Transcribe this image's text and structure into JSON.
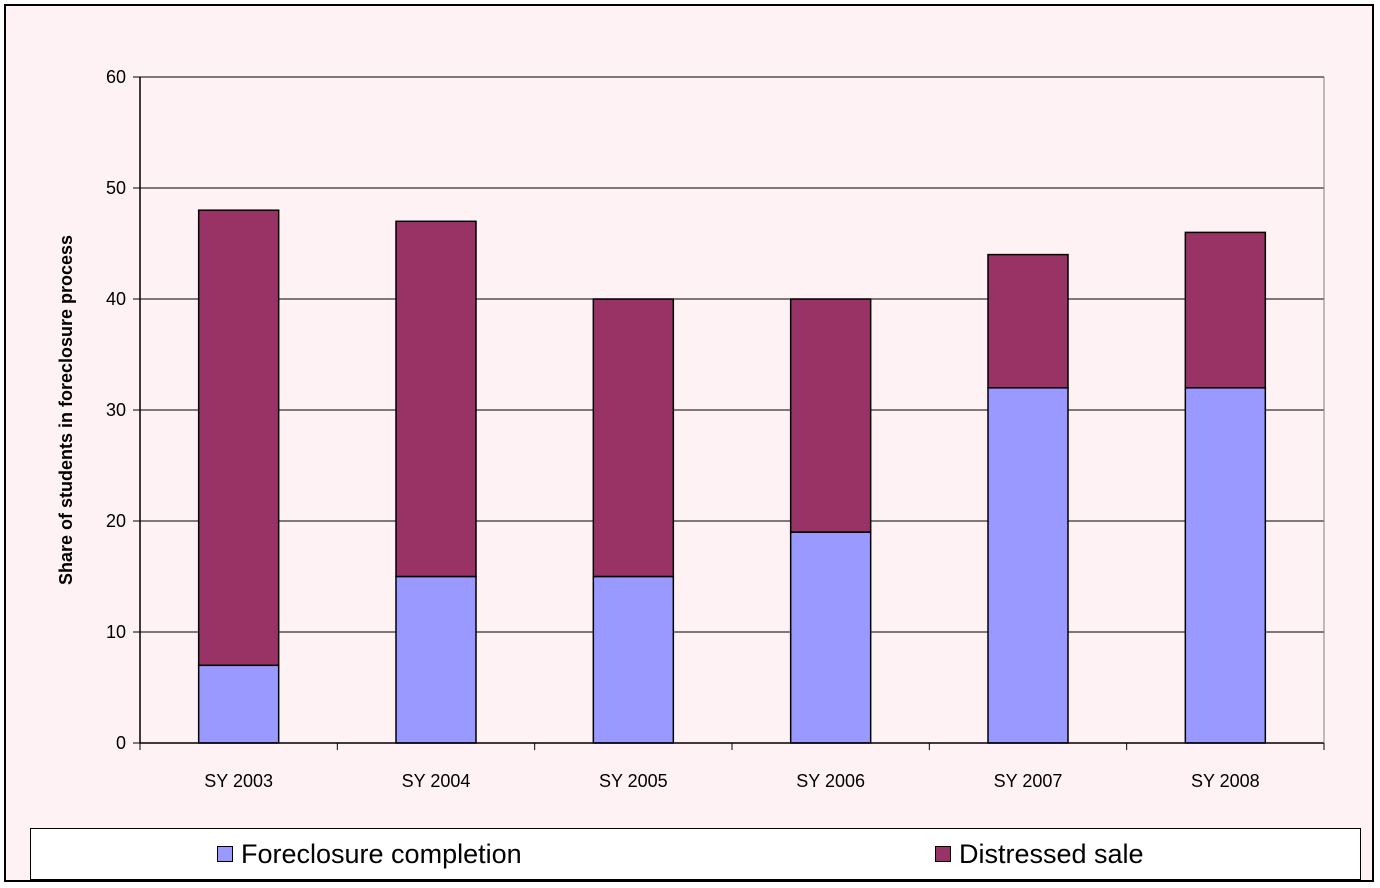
{
  "chart_data": {
    "type": "bar",
    "stacked": true,
    "categories": [
      "SY 2003",
      "SY 2004",
      "SY 2005",
      "SY 2006",
      "SY 2007",
      "SY 2008"
    ],
    "series": [
      {
        "name": "Foreclosure completion",
        "values": [
          7,
          15,
          15,
          19,
          32,
          32
        ],
        "color": "#9999ff"
      },
      {
        "name": "Distressed sale",
        "values": [
          41,
          32,
          25,
          21,
          12,
          14
        ],
        "color": "#993366"
      }
    ],
    "title": "",
    "xlabel": "",
    "ylabel": "Share of students in foreclosure process",
    "ylim": [
      0,
      60
    ],
    "yticks": [
      "0",
      "10",
      "20",
      "30",
      "40",
      "50",
      "60"
    ],
    "grid": true,
    "legend_position": "bottom",
    "background_color": "#fff2f4"
  }
}
